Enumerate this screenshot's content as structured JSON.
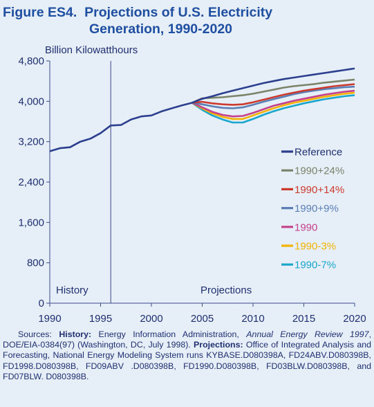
{
  "title_line1": "Figure ES4.  Projections of U.S. Electricity",
  "title_line2": "Generation, 1990-2020",
  "colors": {
    "background": "#e6eef8",
    "title": "#1f4fa0",
    "text": "#1f2f70",
    "axis": "#3a4a8a"
  },
  "sources": {
    "lead": "Sources: ",
    "history_label": "History:",
    "history_text_1": " Energy Information Administration, ",
    "history_italic": "Annual Energy Review 1997",
    "history_text_2": ", DOE/EIA-0384(97) (Washington, DC, July 1998). ",
    "projections_label": "Projections:",
    "projections_text": " Office of Integrated Analysis and Forecasting, National Energy Modeling System runs KYBASE.D080398A, FD24ABV.D080398B, FD1998.D080398B, FD09ABV .D080398B, FD1990.D080398B, FD03BLW.D080398B, and FD07BLW. D080398B."
  },
  "chart_data": {
    "type": "line",
    "title": "Figure ES4.  Projections of U.S. Electricity Generation, 1990-2020",
    "ylabel": "Billion Kilowatthours",
    "xlabel": "",
    "xlim": [
      1990,
      2020
    ],
    "ylim": [
      0,
      4800
    ],
    "x_ticks": [
      1990,
      1995,
      2000,
      2005,
      2010,
      2015,
      2020
    ],
    "y_ticks": [
      0,
      800,
      1600,
      2400,
      3200,
      4000,
      4800
    ],
    "y_tick_labels": [
      "0",
      "800",
      "1,600",
      "2,400",
      "3,200",
      "4,000",
      "4,800"
    ],
    "grid": false,
    "legend_position": "right",
    "annotations": {
      "history": "History",
      "projections": "Projections",
      "divider_year": 1996
    },
    "history": {
      "x": [
        1990,
        1991,
        1992,
        1993,
        1994,
        1995,
        1996,
        1997,
        1998,
        1999,
        2000,
        2001,
        2002,
        2003,
        2004
      ],
      "values": [
        3010,
        3070,
        3090,
        3200,
        3260,
        3370,
        3520,
        3530,
        3640,
        3700,
        3720,
        3800,
        3860,
        3920,
        3970
      ]
    },
    "projection_x": [
      2004,
      2005,
      2006,
      2007,
      2008,
      2009,
      2010,
      2011,
      2012,
      2013,
      2014,
      2015,
      2016,
      2017,
      2018,
      2019,
      2020
    ],
    "series": [
      {
        "name": "1990-7%",
        "color": "#1aa6cc",
        "values": [
          3970,
          3830,
          3720,
          3640,
          3580,
          3580,
          3650,
          3730,
          3800,
          3860,
          3910,
          3960,
          4000,
          4040,
          4070,
          4100,
          4120
        ]
      },
      {
        "name": "1990-3%",
        "color": "#f2b300",
        "values": [
          3970,
          3860,
          3760,
          3690,
          3650,
          3650,
          3720,
          3790,
          3860,
          3920,
          3970,
          4010,
          4050,
          4090,
          4120,
          4150,
          4170
        ]
      },
      {
        "name": "1990",
        "color": "#c6418c",
        "values": [
          3970,
          3880,
          3790,
          3730,
          3700,
          3710,
          3770,
          3840,
          3910,
          3960,
          4010,
          4050,
          4090,
          4130,
          4160,
          4190,
          4210
        ]
      },
      {
        "name": "1990+9%",
        "color": "#5b7fb5",
        "values": [
          3970,
          3940,
          3900,
          3870,
          3860,
          3880,
          3930,
          3990,
          4040,
          4090,
          4140,
          4180,
          4210,
          4240,
          4260,
          4280,
          4290
        ]
      },
      {
        "name": "1990+14%",
        "color": "#cc3a2e",
        "values": [
          3970,
          3990,
          3960,
          3940,
          3930,
          3940,
          3980,
          4030,
          4080,
          4130,
          4170,
          4210,
          4240,
          4270,
          4300,
          4320,
          4340
        ]
      },
      {
        "name": "1990+24%",
        "color": "#7a8268",
        "values": [
          3970,
          4060,
          4070,
          4080,
          4100,
          4120,
          4150,
          4190,
          4230,
          4270,
          4300,
          4320,
          4340,
          4370,
          4390,
          4410,
          4430
        ]
      },
      {
        "name": "Reference",
        "color": "#2c3f8f",
        "values": [
          3970,
          4050,
          4100,
          4160,
          4210,
          4260,
          4310,
          4360,
          4400,
          4440,
          4470,
          4500,
          4530,
          4560,
          4590,
          4620,
          4650
        ]
      }
    ],
    "legend_order": [
      "Reference",
      "1990+24%",
      "1990+14%",
      "1990+9%",
      "1990",
      "1990-3%",
      "1990-7%"
    ]
  }
}
